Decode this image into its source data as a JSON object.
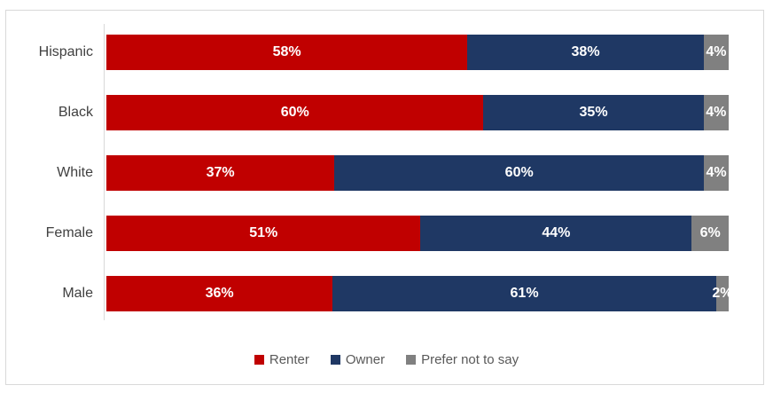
{
  "chart_data": {
    "type": "bar",
    "orientation": "horizontal",
    "stacked": true,
    "title": "",
    "xlabel": "",
    "ylabel": "",
    "xlim": [
      0,
      100
    ],
    "grid": false,
    "legend_position": "bottom",
    "data_labels": "white-bold-percent",
    "categories": [
      "Hispanic",
      "Black",
      "White",
      "Female",
      "Male"
    ],
    "series": [
      {
        "name": "Renter",
        "color": "#c00000",
        "values": [
          58,
          60,
          37,
          51,
          36
        ]
      },
      {
        "name": "Owner",
        "color": "#1f3864",
        "values": [
          38,
          35,
          60,
          44,
          61
        ]
      },
      {
        "name": "Prefer not to say",
        "color": "#808080",
        "values": [
          4,
          4,
          4,
          6,
          2
        ]
      }
    ],
    "value_suffix": "%"
  },
  "colors": {
    "background": "#ffffff",
    "chart_border": "#d9d9d9",
    "axis_line": "#d9d9d9",
    "category_text": "#404040",
    "legend_text": "#595959",
    "data_label_text": "#ffffff"
  }
}
